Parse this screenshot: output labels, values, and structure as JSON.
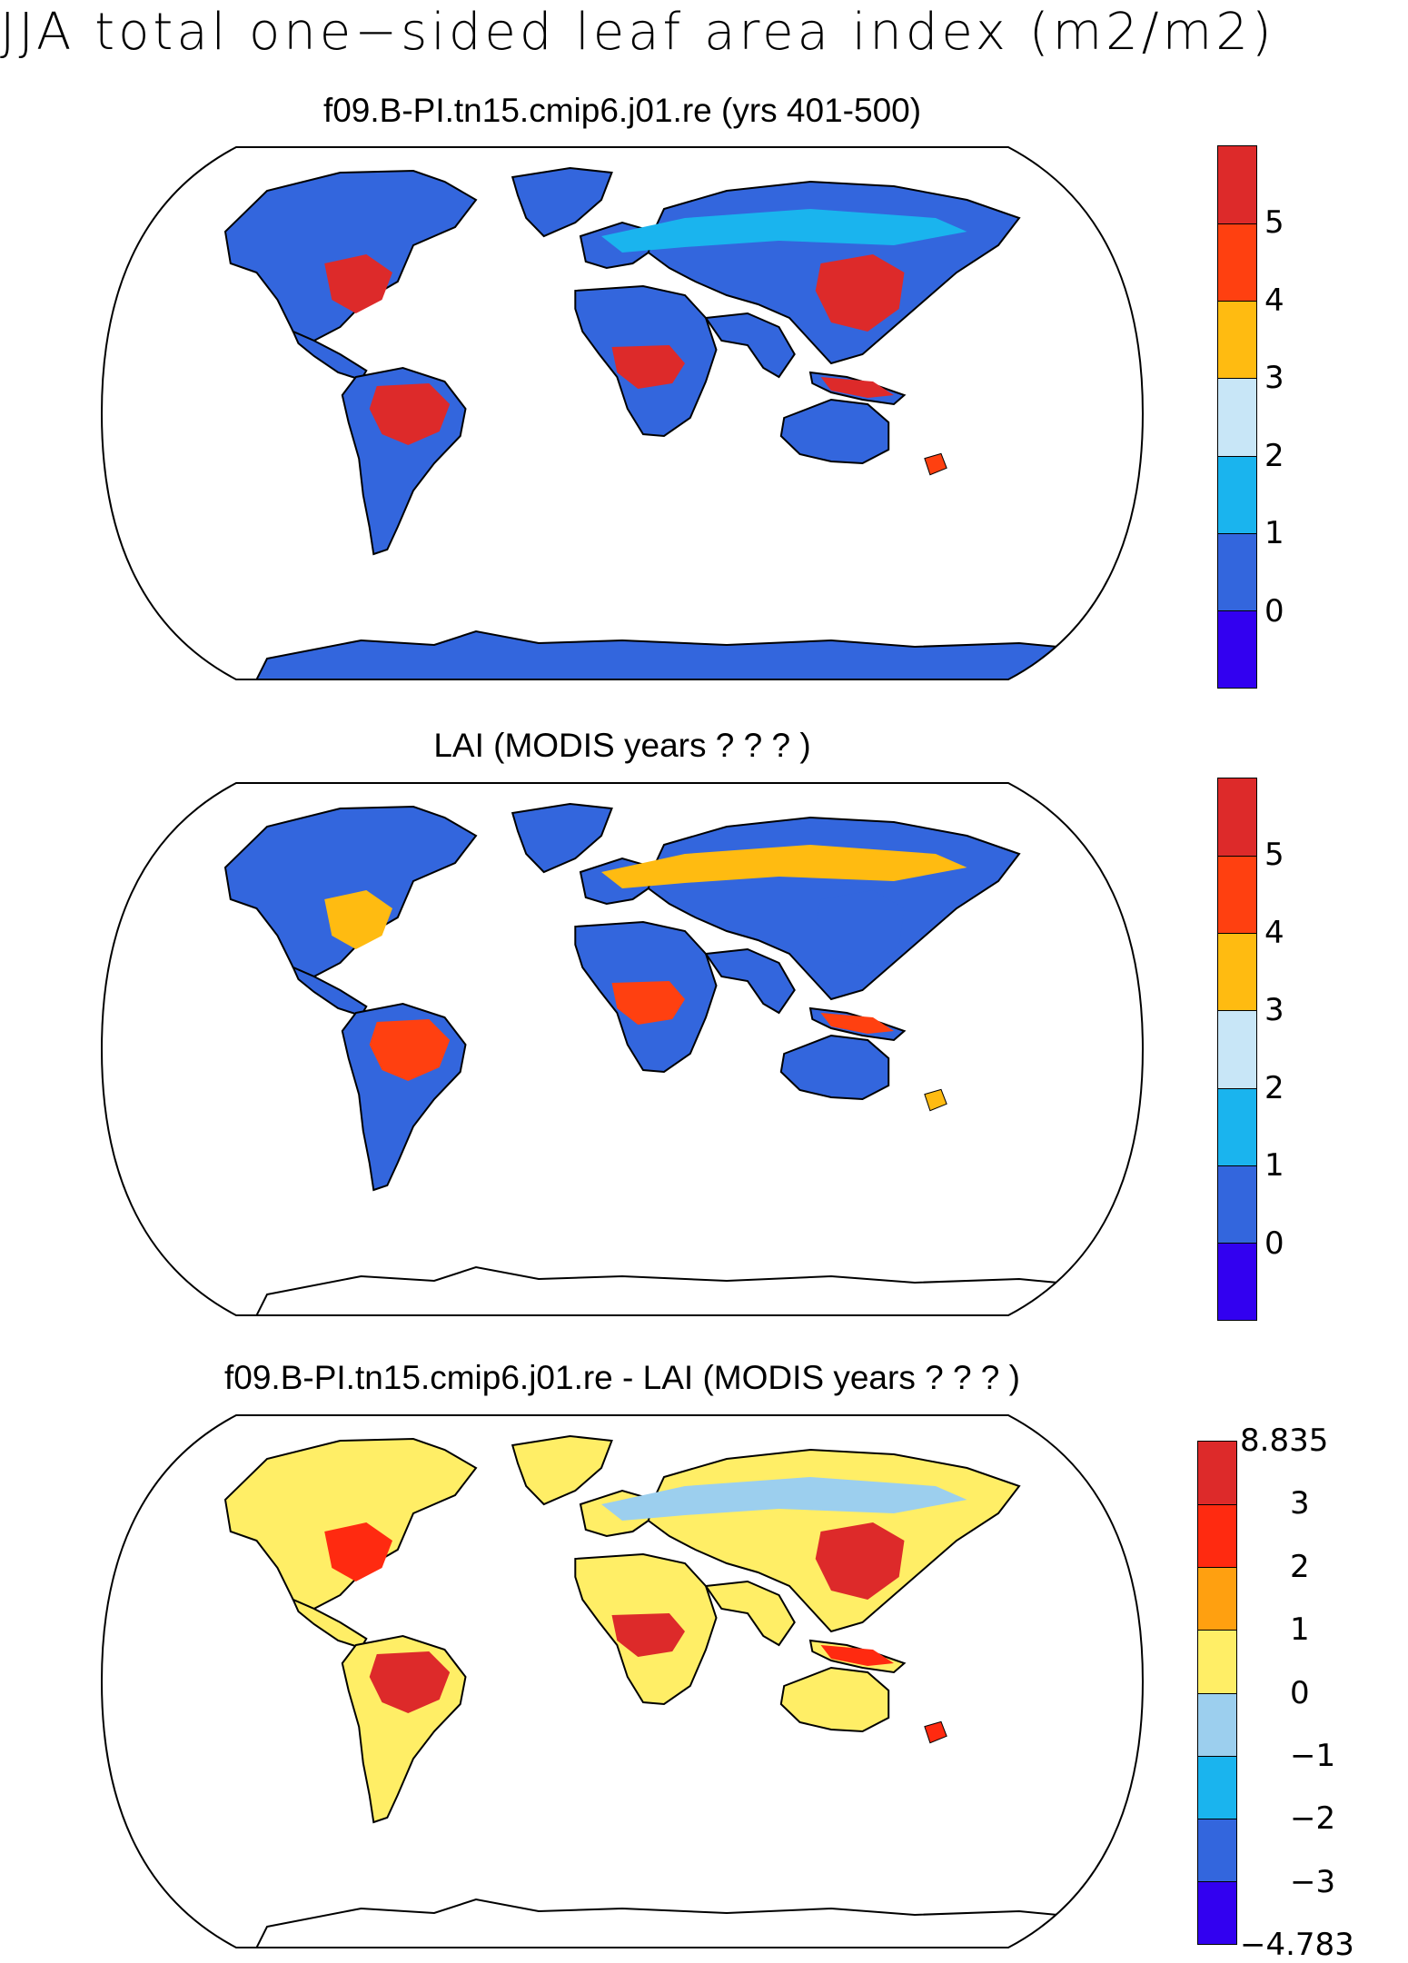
{
  "figure": {
    "title": "JJA total one−sided leaf area index (m2/m2)"
  },
  "panels": [
    {
      "title": "f09.B-PI.tn15.cmip6.j01.re (yrs 401-500)",
      "palette": [
        "#3200f0",
        "#3366dd",
        "#1ab4ee",
        "#c8e6f7",
        "#ffbb11",
        "#ff4010",
        "#dd2a2a"
      ],
      "colorbar_labels": [
        "0",
        "1",
        "2",
        "3",
        "4",
        "5"
      ],
      "label_mode": "boundaries",
      "has_antarctic_fill": true,
      "fields": {
        "land_background": "#3366dd",
        "greenland": "#3366dd",
        "tropical_south_america": "#dd2a2a",
        "central_africa": "#dd2a2a",
        "eastern_north_america": "#dd2a2a",
        "east_asia": "#dd2a2a",
        "maritime_continent": "#dd2a2a",
        "boreal_belt": "#1ab4ee",
        "new_zealand": "#ff4010"
      }
    },
    {
      "title": "LAI (MODIS years ? ? ? )",
      "palette": [
        "#3200f0",
        "#3366dd",
        "#1ab4ee",
        "#c8e6f7",
        "#ffbb11",
        "#ff4010",
        "#dd2a2a"
      ],
      "colorbar_labels": [
        "0",
        "1",
        "2",
        "3",
        "4",
        "5"
      ],
      "label_mode": "boundaries",
      "has_antarctic_fill": false,
      "fields": {
        "land_background": "#3366dd",
        "greenland": "#3366dd",
        "tropical_south_america": "#ff4010",
        "central_africa": "#ff4010",
        "eastern_north_america": "#ffbb11",
        "east_asia": "#3366dd",
        "maritime_continent": "#ff4010",
        "boreal_belt": "#ffbb11",
        "new_zealand": "#ffbb11"
      }
    },
    {
      "title": "f09.B-PI.tn15.cmip6.j01.re - LAI (MODIS years ? ? ? )",
      "palette": [
        "#3200f0",
        "#3366dd",
        "#1ab4ee",
        "#9ccfee",
        "#ffee66",
        "#ffa010",
        "#ff2a10",
        "#dd2a2a"
      ],
      "colorbar_labels": [
        "8.835",
        "3",
        "2",
        "1",
        "0",
        "−1",
        "−2",
        "−3",
        "−4.783"
      ],
      "label_mode": "edges",
      "has_antarctic_fill": false,
      "fields": {
        "land_background": "#ffee66",
        "greenland": "#ffee66",
        "tropical_south_america": "#dd2a2a",
        "central_africa": "#dd2a2a",
        "eastern_north_america": "#ff2a10",
        "east_asia": "#dd2a2a",
        "maritime_continent": "#ff2a10",
        "boreal_belt": "#9ccfee",
        "new_zealand": "#ff2a10"
      }
    }
  ]
}
